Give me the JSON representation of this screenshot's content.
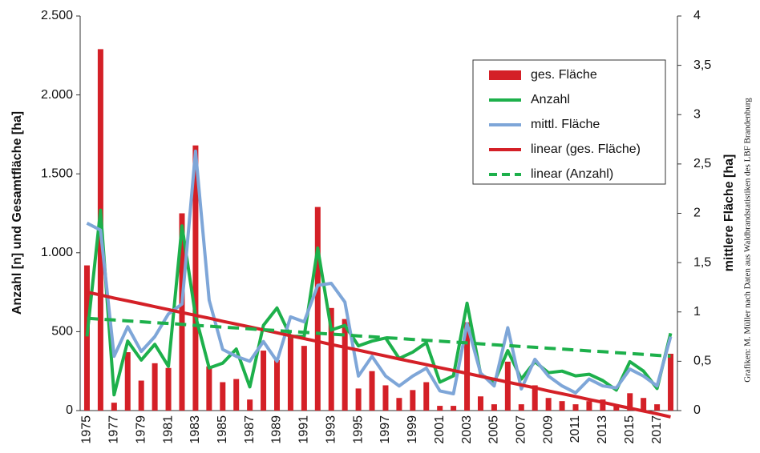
{
  "chart_data": {
    "type": "bar",
    "categories": [
      "1975",
      null,
      "1977",
      null,
      "1979",
      null,
      "1981",
      null,
      "1983",
      null,
      "1985",
      null,
      "1987",
      null,
      "1989",
      null,
      "1991",
      null,
      "1993",
      null,
      "1995",
      null,
      "1997",
      null,
      "1999",
      null,
      "2001",
      null,
      "2003",
      null,
      "2005",
      null,
      "2007",
      null,
      "2009",
      null,
      "2011",
      null,
      "2013",
      null,
      "2015",
      null,
      "2017",
      null
    ],
    "y_label": "Anzahl [n] und Gesamtfläche [ha]",
    "y2_label": "mittlere Fläche [ha]",
    "source": "Grafiken: M. Müller nach Daten aus Waldbrandstatistiken des LBF Brandenburg",
    "ylim": [
      0,
      2500
    ],
    "yticks": [
      0,
      500,
      {
        "value": 1000,
        "label": "1.000"
      },
      {
        "value": 1500,
        "label": "1.500"
      },
      {
        "value": 2000,
        "label": "2.000"
      },
      {
        "value": 2500,
        "label": "2.500"
      }
    ],
    "y2lim": [
      0,
      4
    ],
    "y2ticks": [
      0,
      {
        "value": 0.5,
        "label": "0,5"
      },
      1,
      {
        "value": 1.5,
        "label": "1,5"
      },
      2,
      {
        "value": 2.5,
        "label": "2,5"
      },
      3,
      {
        "value": 3.5,
        "label": "3,5"
      },
      4
    ],
    "grid": false,
    "legend": "upper right",
    "series": [
      {
        "name": "ges. Fläche",
        "type": "bar",
        "color": "#d42027",
        "values": [
          920,
          2290,
          50,
          370,
          190,
          300,
          270,
          1250,
          1680,
          280,
          180,
          200,
          70,
          380,
          320,
          470,
          410,
          1290,
          650,
          580,
          140,
          250,
          160,
          80,
          130,
          180,
          30,
          30,
          560,
          90,
          40,
          310,
          40,
          160,
          80,
          60,
          40,
          60,
          70,
          30,
          110,
          80,
          40,
          360
        ]
      },
      {
        "name": "Anzahl",
        "type": "line",
        "color": "#1db04b",
        "values": [
          470,
          1270,
          100,
          440,
          320,
          420,
          280,
          1170,
          600,
          270,
          300,
          390,
          150,
          540,
          650,
          470,
          470,
          1030,
          510,
          540,
          410,
          440,
          460,
          330,
          370,
          430,
          180,
          220,
          680,
          230,
          180,
          380,
          200,
          310,
          240,
          250,
          220,
          230,
          190,
          130,
          310,
          250,
          140,
          490
        ]
      },
      {
        "name": "mittl. Fläche",
        "type": "line",
        "color": "#7ea6d8",
        "axis": "y2",
        "values": [
          1.9,
          1.83,
          0.55,
          0.85,
          0.6,
          0.75,
          0.98,
          1.08,
          2.63,
          1.12,
          0.62,
          0.55,
          0.5,
          0.7,
          0.5,
          0.95,
          0.9,
          1.27,
          1.29,
          1.1,
          0.35,
          0.55,
          0.35,
          0.25,
          0.35,
          0.43,
          0.2,
          0.17,
          0.88,
          0.38,
          0.25,
          0.84,
          0.22,
          0.52,
          0.35,
          0.25,
          0.18,
          0.32,
          0.25,
          0.23,
          0.42,
          0.35,
          0.25,
          0.75
        ]
      },
      {
        "name": "linear (ges. Fläche)",
        "type": "line",
        "color": "#d42027",
        "values": [
          750,
          732,
          713,
          695,
          677,
          658,
          640,
          621,
          603,
          585,
          566,
          548,
          530,
          511,
          493,
          474,
          456,
          438,
          419,
          401,
          383,
          364,
          346,
          327,
          309,
          291,
          272,
          254,
          236,
          217,
          199,
          180,
          162,
          144,
          125,
          107,
          89,
          70,
          52,
          33,
          15,
          -3,
          -21,
          -40
        ]
      },
      {
        "name": "linear (Anzahl)",
        "type": "line",
        "color": "#1db04b",
        "dash": true,
        "values": [
          585,
          579,
          574,
          568,
          563,
          557,
          552,
          546,
          540,
          535,
          529,
          524,
          518,
          512,
          507,
          501,
          496,
          490,
          485,
          479,
          473,
          468,
          462,
          457,
          451,
          445,
          440,
          434,
          429,
          423,
          417,
          412,
          406,
          401,
          395,
          390,
          384,
          378,
          373,
          367,
          362,
          356,
          350,
          345
        ]
      }
    ]
  }
}
